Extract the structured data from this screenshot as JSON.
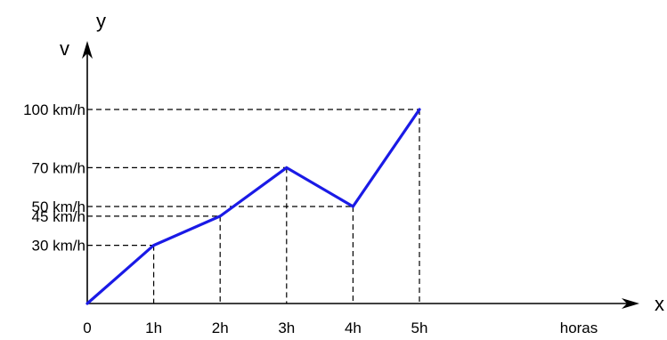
{
  "colors": {
    "axis": "#000000",
    "guides": "#000000",
    "series": "#1a1ae6"
  },
  "chart_data": {
    "type": "line",
    "x": [
      0,
      1,
      2,
      3,
      4,
      5
    ],
    "x_tick_labels": [
      "0",
      "1h",
      "2h",
      "3h",
      "4h",
      "5h"
    ],
    "y_tick_values": [
      30,
      45,
      50,
      70,
      100
    ],
    "y_tick_labels": [
      "30 km/h",
      "45 km/h",
      "50 km/h",
      "70 km/h",
      "100 km/h"
    ],
    "series": [
      {
        "values": [
          0,
          30,
          45,
          70,
          50,
          100
        ],
        "color": "#1a1ae6"
      }
    ],
    "axis_labels": {
      "x_arrow": "x",
      "y_arrow": "y",
      "y_variable": "v",
      "x_unit": "horas"
    },
    "xlim": [
      0,
      8.3
    ],
    "ylim": [
      0,
      133
    ],
    "grid": false,
    "guide_lines": "dashed",
    "legend": "none"
  }
}
